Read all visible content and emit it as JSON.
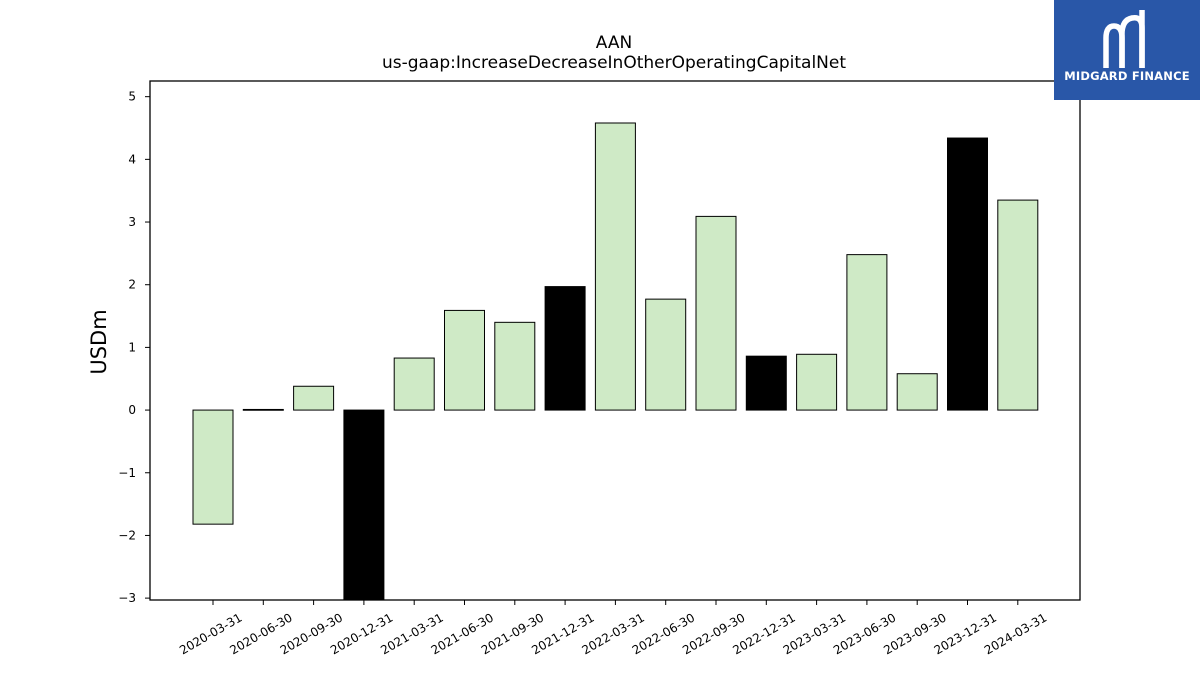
{
  "chart_data": {
    "type": "bar",
    "title": "AAN",
    "subtitle": "us-gaap:IncreaseDecreaseInOtherOperatingCapitalNet",
    "xlabel": "",
    "ylabel": "USDm",
    "ylim": [
      -3.03,
      5.25
    ],
    "yticks": [
      -3,
      -2,
      -1,
      0,
      1,
      2,
      3,
      4,
      5
    ],
    "ytick_labels": [
      "−3",
      "−2",
      "−1",
      "0",
      "1",
      "2",
      "3",
      "4",
      "5"
    ],
    "grid": false,
    "legend": "none",
    "categories": [
      "2020-03-31",
      "2020-06-30",
      "2020-09-30",
      "2020-12-31",
      "2021-03-31",
      "2021-06-30",
      "2021-09-30",
      "2021-12-31",
      "2022-03-31",
      "2022-06-30",
      "2022-09-30",
      "2022-12-31",
      "2023-03-31",
      "2023-06-30",
      "2023-09-30",
      "2023-12-31",
      "2024-03-31"
    ],
    "values": [
      -1.82,
      0.01,
      0.38,
      -3.2,
      0.83,
      1.59,
      1.4,
      1.97,
      4.58,
      1.77,
      3.09,
      0.86,
      0.89,
      2.48,
      0.58,
      4.34,
      3.35
    ],
    "bar_colors": [
      "#cfeac6",
      "#cfeac6",
      "#cfeac6",
      "#000000",
      "#cfeac6",
      "#cfeac6",
      "#cfeac6",
      "#000000",
      "#cfeac6",
      "#cfeac6",
      "#cfeac6",
      "#000000",
      "#cfeac6",
      "#cfeac6",
      "#cfeac6",
      "#000000",
      "#cfeac6"
    ]
  },
  "logo": {
    "text": "MIDGARD FINANCE",
    "icon": "midgard-logo-icon",
    "background": "#2957a8"
  }
}
